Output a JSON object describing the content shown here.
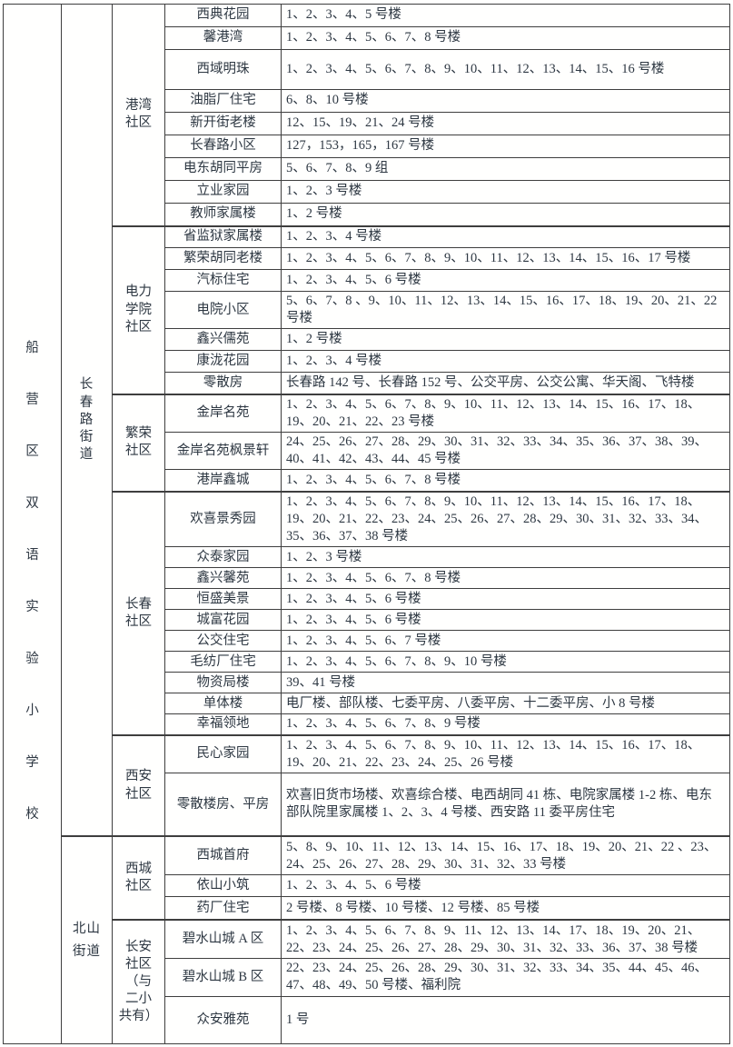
{
  "page": {
    "background": "#ffffff",
    "text_color": "#2d3742",
    "border_color": "#3e3e3e"
  },
  "table": {
    "school": "船营区双语实验小学校",
    "streets": [
      {
        "name": "长\n春\n路\n街\n道",
        "communities": [
          {
            "name": "港湾\n社区",
            "rows": [
              {
                "estate": "西典花园",
                "buildings": "1、2、3、4、5 号楼"
              },
              {
                "estate": "馨港湾",
                "buildings": "1、2、3、4、5、6、7、8 号楼"
              },
              {
                "estate": "西域明珠",
                "buildings": "1、2、3、4、5、6、7、8、9、10、11、12、13、14、15、16 号楼"
              },
              {
                "estate": "油脂厂住宅",
                "buildings": "6、8、10 号楼"
              },
              {
                "estate": "新开街老楼",
                "buildings": "12、15、19、21、24 号楼"
              },
              {
                "estate": "长春路小区",
                "buildings": "127，153，165，167 号楼"
              },
              {
                "estate": "电东胡同平房",
                "buildings": "5、6、7、8、9 组"
              },
              {
                "estate": "立业家园",
                "buildings": "1、2、3 号楼"
              },
              {
                "estate": "教师家属楼",
                "buildings": "1、2 号楼"
              }
            ]
          },
          {
            "name": "电力\n学院\n社区",
            "rows": [
              {
                "estate": "省监狱家属楼",
                "buildings": "1、2、3、4 号楼"
              },
              {
                "estate": "繁荣胡同老楼",
                "buildings": "1、2、3、4、5、6、7、8、9、10、11、12、13、14、15、16、17 号楼"
              },
              {
                "estate": "汽标住宅",
                "buildings": "1、2、3、4、5、6 号楼"
              },
              {
                "estate": "电院小区",
                "buildings": "5、6、7、8 、9、10、11、12、13、14、15、16、17、18、19、20、21、22 号楼"
              },
              {
                "estate": "鑫兴儒苑",
                "buildings": "1、2 号楼"
              },
              {
                "estate": "康泷花园",
                "buildings": "1、2、3、4 号楼"
              },
              {
                "estate": "零散房",
                "buildings": "长春路 142 号、长春路 152 号、公交平房、公交公寓、华天阁、飞特楼"
              }
            ]
          },
          {
            "name": "繁荣\n社区",
            "rows": [
              {
                "estate": "金岸名苑",
                "buildings": "1、2、3、4、5、6、7、8、9、10、11、12、13、14、15、16、17、18、19、20、21、22、23 号楼"
              },
              {
                "estate": "金岸名苑枫景轩",
                "buildings": "24、25、26、27、28、29、30、31、32、33、34、35、36、37、38、39、40、41、42、43、44、45 号楼"
              },
              {
                "estate": "港岸鑫城",
                "buildings": "1、2、3、4、5、6、7、8 号楼"
              }
            ]
          },
          {
            "name": "长春\n社区",
            "rows": [
              {
                "estate": "欢喜景秀园",
                "buildings": "1、2、3、4、5、6、7、8、9、10、11、12、13、14、15、16、17、18、19、20、21、22、23、24、25、26、27、28、29、30、31、32、33、34、35、36、37、38 号楼"
              },
              {
                "estate": "众泰家园",
                "buildings": "1、2、3 号楼"
              },
              {
                "estate": "鑫兴馨苑",
                "buildings": "1、2、3、4、5、6、7、8 号楼"
              },
              {
                "estate": "恒盛美景",
                "buildings": "1、2、3、4、5、6 号楼"
              },
              {
                "estate": "城富花园",
                "buildings": "1、2、3、4、5、6 号楼"
              },
              {
                "estate": "公交住宅",
                "buildings": "1、2、3、4、5、6、7 号楼"
              },
              {
                "estate": "毛纺厂住宅",
                "buildings": "1、2、3、4、5、6、7、8、9、10 号楼"
              },
              {
                "estate": "物资局楼",
                "buildings": "39、41 号楼"
              },
              {
                "estate": "单体楼",
                "buildings": "电厂楼、部队楼、七委平房、八委平房、十二委平房、小 8 号楼"
              },
              {
                "estate": "幸福领地",
                "buildings": "1、2、3、4、5、6、7、8、9 号楼"
              }
            ]
          },
          {
            "name": "西安\n社区",
            "rows": [
              {
                "estate": "民心家园",
                "buildings": "1、2、3、4、5、6、7、8、9、10、11、12、13、14、15、16、17、18、19、20、21、22、23、24、25、26 号楼"
              },
              {
                "estate": "零散楼房、平房",
                "buildings": "欢喜旧货市场楼、欢喜综合楼、电西胡同 41 栋、电院家属楼 1-2 栋、电东部队院里家属楼 1、2、3、4 号楼、西安路 11 委平房住宅"
              }
            ]
          }
        ]
      },
      {
        "name": "北山\n街道",
        "communities": [
          {
            "name": "西城\n社区",
            "rows": [
              {
                "estate": "西城首府",
                "buildings": "5、8、9、10、11、12、13、14、15、16、17、18、19、20、21、22 、23、24、25、26、27、28、29、30、31、32、33 号楼"
              },
              {
                "estate": "依山小筑",
                "buildings": "1、2、3、4、5、6 号楼"
              },
              {
                "estate": "药厂住宅",
                "buildings": "2 号楼、8 号楼、10 号楼、12 号楼、85 号楼"
              }
            ]
          },
          {
            "name": "长安\n社区\n（与\n二小\n共有）",
            "rows": [
              {
                "estate": "碧水山城 A 区",
                "buildings": "1、2、3、4、5、6、7、8、9、11、12、13、14、17、18、19、20、21、22、23、24、25、26、27、28、29、30、31、32、33、36、37、38 号楼"
              },
              {
                "estate": "碧水山城 B 区",
                "buildings": "22、23、24、25、26、28、29、30、31、32、33、34、35、44、45、46、47、48、49、50 号楼、福利院"
              },
              {
                "estate": "众安雅苑",
                "buildings": "1 号"
              }
            ]
          }
        ]
      }
    ]
  }
}
